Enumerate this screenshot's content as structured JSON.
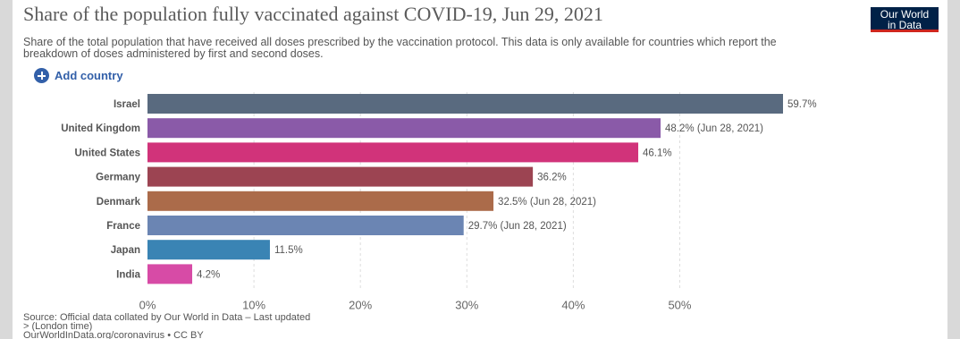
{
  "header": {
    "title": "Share of the population fully vaccinated against COVID-19, Jun 29, 2021",
    "subtitle": "Share of the total population that have received all doses prescribed by the vaccination protocol. This data is only available for countries which report the breakdown of doses administered by first and second doses.",
    "logo_line1": "Our World",
    "logo_line2": "in Data"
  },
  "controls": {
    "add_country_label": "Add country",
    "add_icon": "plus-circle-icon"
  },
  "footer": {
    "source_line1": "Source: Official data collated by Our World in Data – Last updated",
    "source_line2": "> (London time)",
    "source_line3": "OurWorldInData.org/coronavirus • CC BY"
  },
  "chart_data": {
    "type": "bar",
    "orientation": "horizontal",
    "categories": [
      "Israel",
      "United Kingdom",
      "United States",
      "Germany",
      "Denmark",
      "France",
      "Japan",
      "India"
    ],
    "values": [
      59.7,
      48.2,
      46.1,
      36.2,
      32.5,
      29.7,
      11.5,
      4.2
    ],
    "value_labels": [
      "59.7%",
      "48.2% (Jun 28, 2021)",
      "46.1%",
      "36.2%",
      "32.5% (Jun 28, 2021)",
      "29.7% (Jun 28, 2021)",
      "11.5%",
      "4.2%"
    ],
    "colors": [
      "#596a7f",
      "#8a5aa8",
      "#d1337a",
      "#9c4452",
      "#ab6b4a",
      "#6b85b3",
      "#3a84b4",
      "#d74ba6"
    ],
    "xticks": [
      0,
      10,
      20,
      30,
      40,
      50
    ],
    "xtick_labels": [
      "0%",
      "10%",
      "20%",
      "30%",
      "40%",
      "50%"
    ],
    "xlim": [
      0,
      59.7
    ],
    "grid": "vertical-dashed"
  }
}
